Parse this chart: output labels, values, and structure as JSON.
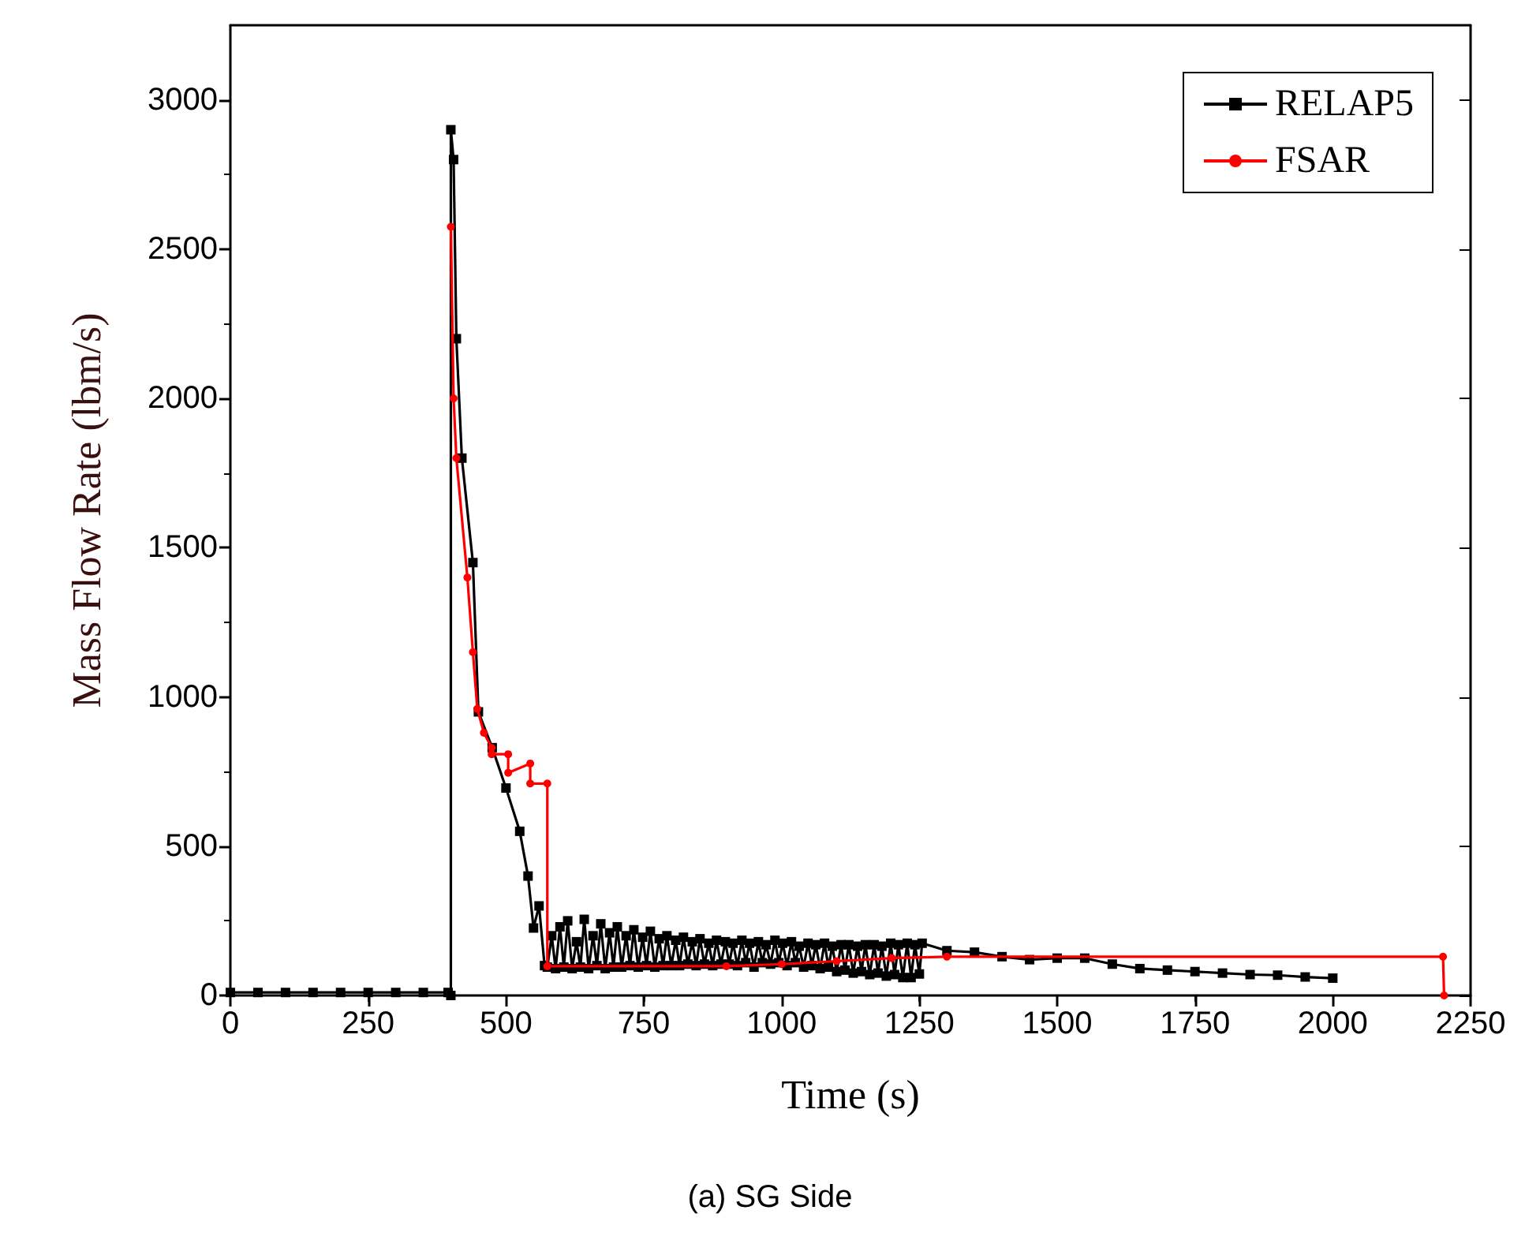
{
  "chart_data": {
    "type": "line",
    "title": "(a) SG Side",
    "xlabel": "Time (s)",
    "ylabel": "Mass Flow Rate (lbm/s)",
    "xlim": [
      0,
      2250
    ],
    "xticks": [
      0,
      250,
      500,
      750,
      1000,
      1250,
      1500,
      1750,
      2000,
      2250
    ],
    "ylim": [
      0,
      3250
    ],
    "yticks": [
      0,
      500,
      1000,
      1500,
      2000,
      2500,
      3000
    ],
    "grid": false,
    "legend": "top right",
    "series": [
      {
        "name": "RELAP5",
        "color": "#000000",
        "marker": "square",
        "x": [
          0,
          50,
          100,
          150,
          200,
          250,
          300,
          350,
          395,
          400,
          400,
          405,
          410,
          420,
          440,
          450,
          475,
          500,
          525,
          540,
          550,
          560,
          570,
          575,
          583,
          590,
          598,
          605,
          612,
          620,
          628,
          635,
          642,
          650,
          658,
          665,
          672,
          680,
          688,
          695,
          702,
          710,
          718,
          725,
          732,
          740,
          748,
          755,
          762,
          770,
          778,
          785,
          792,
          800,
          808,
          815,
          822,
          830,
          838,
          845,
          852,
          860,
          868,
          875,
          882,
          890,
          898,
          905,
          912,
          920,
          928,
          935,
          942,
          950,
          958,
          965,
          972,
          980,
          988,
          995,
          1002,
          1010,
          1018,
          1025,
          1032,
          1040,
          1048,
          1055,
          1062,
          1070,
          1078,
          1085,
          1092,
          1100,
          1108,
          1115,
          1122,
          1130,
          1138,
          1145,
          1152,
          1160,
          1168,
          1175,
          1182,
          1190,
          1198,
          1205,
          1212,
          1220,
          1228,
          1235,
          1242,
          1250,
          1255,
          1300,
          1350,
          1400,
          1450,
          1500,
          1550,
          1600,
          1650,
          1700,
          1750,
          1800,
          1850,
          1900,
          1950,
          2000
        ],
        "values": [
          10,
          10,
          10,
          10,
          10,
          10,
          10,
          10,
          10,
          0,
          2900,
          2800,
          2200,
          1800,
          1450,
          950,
          830,
          695,
          550,
          400,
          226,
          300,
          100,
          95,
          200,
          90,
          230,
          95,
          250,
          90,
          180,
          95,
          255,
          90,
          200,
          100,
          240,
          90,
          210,
          95,
          230,
          95,
          200,
          100,
          220,
          95,
          195,
          100,
          215,
          95,
          190,
          100,
          200,
          100,
          185,
          100,
          195,
          105,
          180,
          100,
          190,
          105,
          175,
          100,
          185,
          105,
          180,
          105,
          175,
          100,
          185,
          110,
          175,
          95,
          180,
          110,
          170,
          105,
          185,
          110,
          175,
          100,
          180,
          110,
          165,
          95,
          175,
          100,
          170,
          90,
          175,
          95,
          165,
          80,
          170,
          85,
          170,
          75,
          165,
          80,
          170,
          70,
          170,
          75,
          165,
          65,
          175,
          70,
          170,
          60,
          175,
          60,
          170,
          72,
          175,
          150,
          145,
          130,
          120,
          125,
          125,
          105,
          90,
          85,
          80,
          75,
          70,
          68,
          62,
          58
        ]
      },
      {
        "name": "FSAR",
        "color": "#ff0000",
        "marker": "circle",
        "x": [
          400,
          405,
          410,
          430,
          440,
          448,
          460,
          474,
          474,
          504,
          504,
          544,
          544,
          575,
          575,
          900,
          1000,
          1100,
          1200,
          1300,
          2200,
          2202
        ],
        "values": [
          2575,
          2000,
          1800,
          1400,
          1150,
          960,
          880,
          830,
          808,
          808,
          746,
          777,
          710,
          710,
          98,
          98,
          105,
          115,
          125,
          130,
          130,
          0
        ]
      }
    ]
  }
}
